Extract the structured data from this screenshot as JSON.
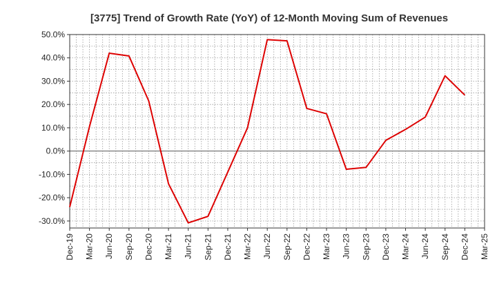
{
  "chart_data": {
    "type": "line",
    "title": "[3775]  Trend of Growth Rate (YoY) of 12-Month Moving Sum of Revenues",
    "xlabel": "",
    "ylabel": "",
    "ylim": [
      -33,
      50
    ],
    "y_ticks": [
      50,
      40,
      30,
      20,
      10,
      0,
      -10,
      -20,
      -30
    ],
    "y_tick_labels": [
      "50.0%",
      "40.0%",
      "30.0%",
      "20.0%",
      "10.0%",
      "0.0%",
      "-10.0%",
      "-20.0%",
      "-30.0%"
    ],
    "x_tick_labels": [
      "Dec-19",
      "Mar-20",
      "Jun-20",
      "Sep-20",
      "Dec-20",
      "Mar-21",
      "Jun-21",
      "Sep-21",
      "Dec-21",
      "Mar-22",
      "Jun-22",
      "Sep-22",
      "Dec-22",
      "Mar-23",
      "Jun-23",
      "Sep-23",
      "Dec-23",
      "Mar-24",
      "Jun-24",
      "Sep-24",
      "Dec-24",
      "Mar-25"
    ],
    "grid": true,
    "series": [
      {
        "color": "#dd0000",
        "x": [
          "Dec-19",
          "Mar-20",
          "Jun-20",
          "Sep-20",
          "Dec-20",
          "Mar-21",
          "Jun-21",
          "Sep-21",
          "Dec-21",
          "Mar-22",
          "Jun-22",
          "Sep-22",
          "Dec-22",
          "Mar-23",
          "Jun-23",
          "Sep-23",
          "Dec-23",
          "Mar-24",
          "Jun-24",
          "Sep-24",
          "Dec-24"
        ],
        "values": [
          -24.0,
          10.5,
          42.0,
          40.8,
          21.5,
          -14.0,
          -30.8,
          -28.0,
          -9.0,
          10.0,
          47.8,
          47.3,
          18.3,
          16.0,
          -7.8,
          -7.0,
          4.6,
          9.3,
          14.6,
          32.3,
          24.0
        ]
      }
    ]
  }
}
